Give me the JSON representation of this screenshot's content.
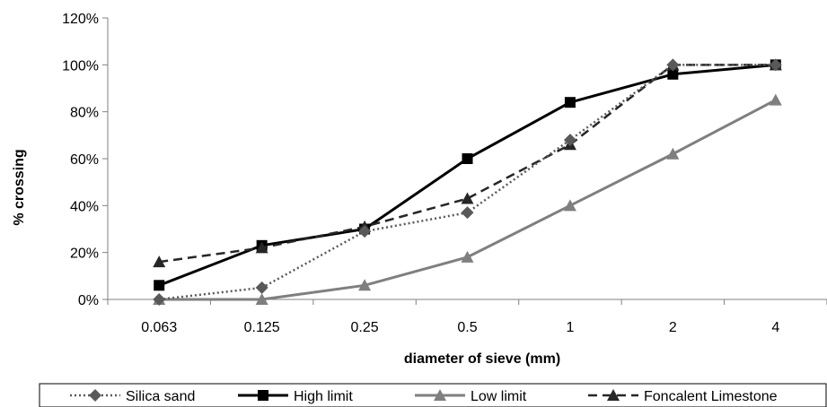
{
  "chart_data": {
    "type": "line",
    "title": "",
    "xlabel": "diameter of sieve (mm)",
    "ylabel": "% crossing",
    "categories": [
      "0.063",
      "0.125",
      "0.25",
      "0.5",
      "1",
      "2",
      "4"
    ],
    "ylim": [
      0,
      1.2
    ],
    "yticks": [
      0,
      0.2,
      0.4,
      0.6,
      0.8,
      1.0,
      1.2
    ],
    "ytick_labels": [
      "0%",
      "20%",
      "40%",
      "60%",
      "80%",
      "100%",
      "120%"
    ],
    "grid": false,
    "legend_position": "bottom",
    "series": [
      {
        "name": "Silica sand",
        "values": [
          0.0,
          0.05,
          0.29,
          0.37,
          0.68,
          1.0,
          1.0
        ],
        "color": "#595959",
        "dash": "dotted",
        "marker": "diamond"
      },
      {
        "name": "High limit",
        "values": [
          0.06,
          0.23,
          0.3,
          0.6,
          0.84,
          0.96,
          1.0
        ],
        "color": "#000000",
        "dash": "solid",
        "marker": "square"
      },
      {
        "name": "Low limit",
        "values": [
          0.0,
          0.0,
          0.06,
          0.18,
          0.4,
          0.62,
          0.85
        ],
        "color": "#7f7f7f",
        "dash": "solid",
        "marker": "triangle"
      },
      {
        "name": "Foncalent Limestone",
        "values": [
          0.16,
          0.22,
          0.31,
          0.43,
          0.66,
          1.0,
          1.0
        ],
        "color": "#262626",
        "dash": "dashed",
        "marker": "triangle"
      }
    ]
  }
}
